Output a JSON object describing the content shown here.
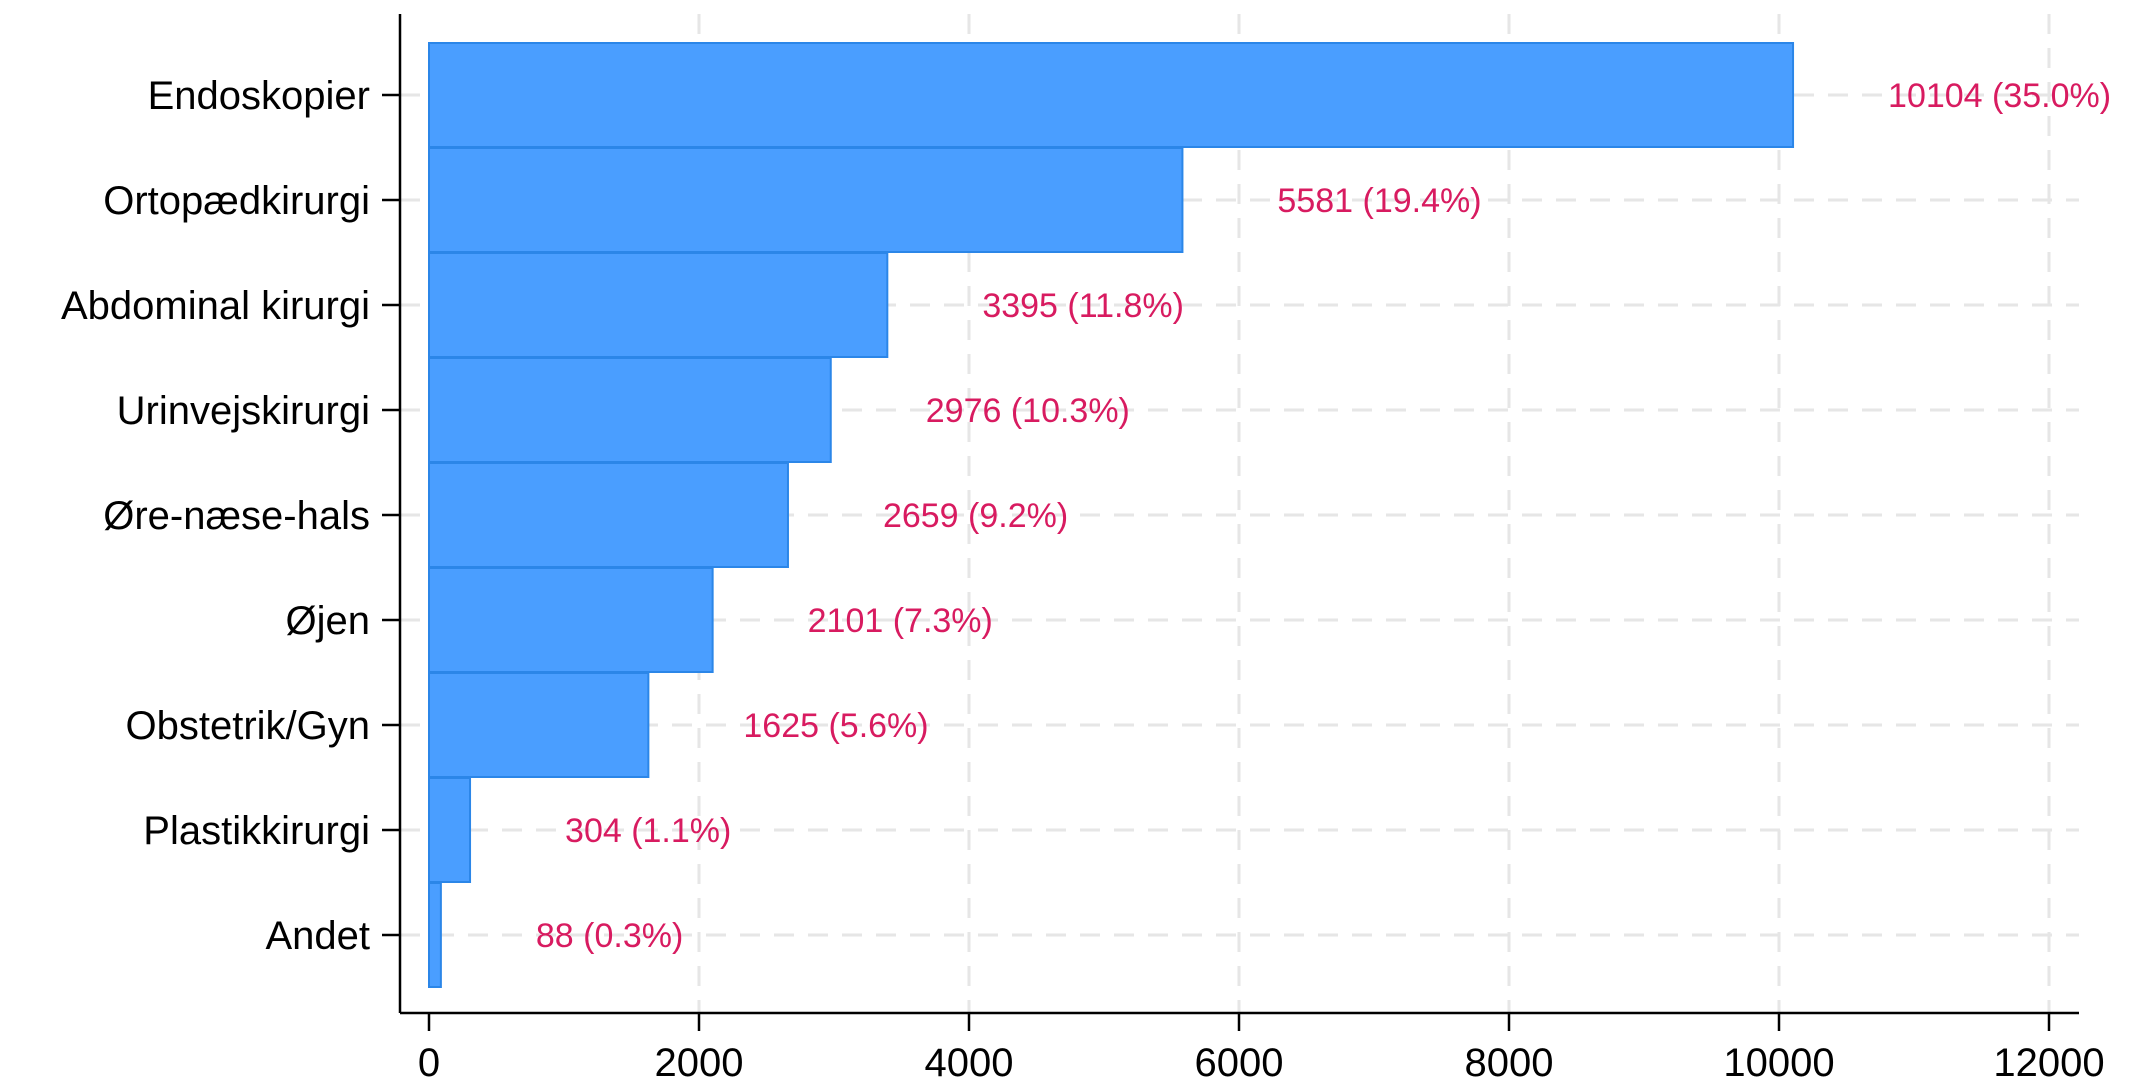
{
  "chart_data": {
    "type": "bar",
    "orientation": "horizontal",
    "categories": [
      "Endoskopier",
      "Ortopædkirurgi",
      "Abdominal kirurgi",
      "Urinvejskirurgi",
      "Øre-næse-hals",
      "Øjen",
      "Obstetrik/Gyn",
      "Plastikkirurgi",
      "Andet"
    ],
    "values": [
      10104,
      5581,
      3395,
      2976,
      2659,
      2101,
      1625,
      304,
      88
    ],
    "data_labels": [
      "10104 (35.0%)",
      "5581 (19.4%)",
      "3395 (11.8%)",
      "2976 (10.3%)",
      "2659 (9.2%)",
      "2101 (7.3%)",
      "1625 (5.6%)",
      "304 (1.1%)",
      "88 (0.3%)"
    ],
    "x_ticks": [
      "0",
      "2000",
      "4000",
      "6000",
      "8000",
      "10000",
      "12000"
    ],
    "xlim": [
      0,
      12000
    ],
    "grid": true,
    "bar_color": "#4a9eff",
    "bar_edge_color": "#2b86e8",
    "label_color": "#d81b60",
    "grid_color": "#e6e6e6"
  }
}
